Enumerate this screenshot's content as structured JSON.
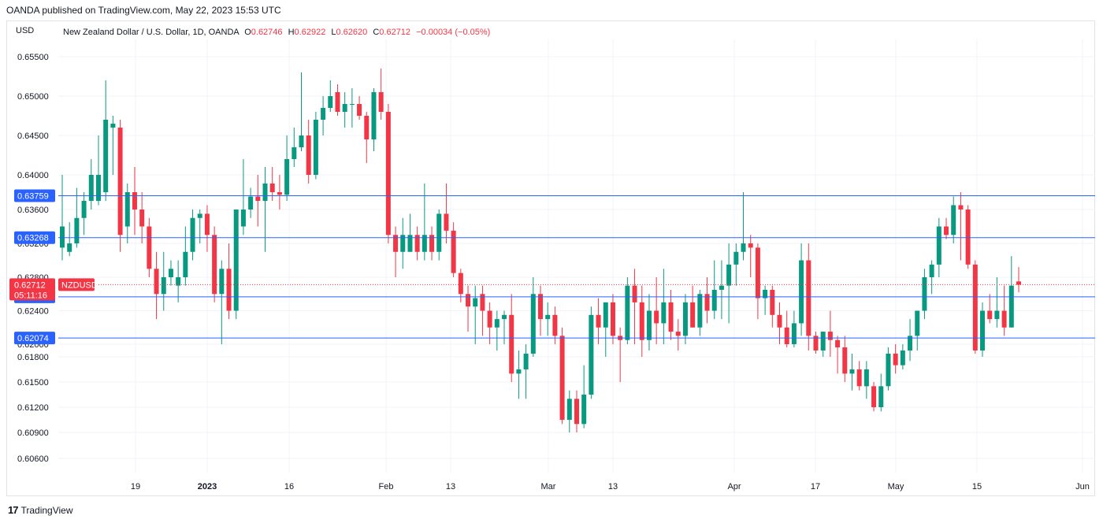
{
  "header": {
    "published": "OANDA published on TradingView.com, May 22, 2023 15:53 UTC"
  },
  "axis_currency": "USD",
  "legend": {
    "symbol": "New Zealand Dollar / U.S. Dollar, 1D, OANDA",
    "o_label": "O",
    "o_value": "0.62746",
    "h_label": "H",
    "h_value": "0.62922",
    "l_label": "L",
    "l_value": "0.62620",
    "c_label": "C",
    "c_value": "0.62712",
    "change": "−0.00034 (−0.05%)"
  },
  "footer": {
    "brand": "TradingView"
  },
  "colors": {
    "up": "#089981",
    "down": "#f23645",
    "hline": "#2962ff",
    "label_bg": "#2962ff",
    "price_bg": "#f23645"
  },
  "chart_data": {
    "type": "candlestick",
    "series_name": "NZDUSD",
    "y_ticks": [
      "0.65500",
      "0.65000",
      "0.64500",
      "0.64000",
      "0.63600",
      "0.63200",
      "0.62800",
      "0.62400",
      "0.62000",
      "0.61800",
      "0.61500",
      "0.61200",
      "0.60900",
      "0.60600"
    ],
    "x_ticks": [
      "19",
      "2023",
      "16",
      "Feb",
      "13",
      "Mar",
      "13",
      "Apr",
      "17",
      "May",
      "15",
      "Jun"
    ],
    "horizontal_lines": [
      {
        "value": 0.63759,
        "label": "0.63759"
      },
      {
        "value": 0.63268,
        "label": "0.63268"
      },
      {
        "value": 0.62566,
        "label": "0.62566"
      },
      {
        "value": 0.62074,
        "label": "0.62074"
      }
    ],
    "last_price": {
      "value": 0.62712,
      "label": "0.62712",
      "symbol": "NZDUSD",
      "countdown": "05:11:16"
    },
    "candles": [
      [
        0.6315,
        0.64,
        0.63,
        0.634
      ],
      [
        0.631,
        0.6345,
        0.6305,
        0.632
      ],
      [
        0.632,
        0.6385,
        0.6315,
        0.635
      ],
      [
        0.635,
        0.638,
        0.633,
        0.637
      ],
      [
        0.637,
        0.642,
        0.636,
        0.64
      ],
      [
        0.637,
        0.645,
        0.6365,
        0.64
      ],
      [
        0.638,
        0.652,
        0.637,
        0.647
      ],
      [
        0.646,
        0.6475,
        0.64,
        0.6465
      ],
      [
        0.646,
        0.647,
        0.631,
        0.633
      ],
      [
        0.634,
        0.639,
        0.632,
        0.638
      ],
      [
        0.638,
        0.641,
        0.633,
        0.636
      ],
      [
        0.636,
        0.638,
        0.632,
        0.634
      ],
      [
        0.634,
        0.635,
        0.628,
        0.629
      ],
      [
        0.629,
        0.631,
        0.623,
        0.626
      ],
      [
        0.626,
        0.631,
        0.624,
        0.628
      ],
      [
        0.628,
        0.63,
        0.627,
        0.629
      ],
      [
        0.627,
        0.63,
        0.625,
        0.628
      ],
      [
        0.628,
        0.634,
        0.627,
        0.631
      ],
      [
        0.631,
        0.636,
        0.63,
        0.635
      ],
      [
        0.635,
        0.636,
        0.632,
        0.6355
      ],
      [
        0.6355,
        0.6365,
        0.631,
        0.633
      ],
      [
        0.633,
        0.634,
        0.625,
        0.626
      ],
      [
        0.626,
        0.63,
        0.62,
        0.629
      ],
      [
        0.629,
        0.632,
        0.623,
        0.624
      ],
      [
        0.624,
        0.636,
        0.623,
        0.636
      ],
      [
        0.634,
        0.642,
        0.633,
        0.636
      ],
      [
        0.636,
        0.6385,
        0.635,
        0.6375
      ],
      [
        0.6375,
        0.64,
        0.634,
        0.637
      ],
      [
        0.637,
        0.641,
        0.631,
        0.639
      ],
      [
        0.639,
        0.641,
        0.637,
        0.638
      ],
      [
        0.638,
        0.64,
        0.636,
        0.6377
      ],
      [
        0.6377,
        0.645,
        0.637,
        0.642
      ],
      [
        0.642,
        0.646,
        0.641,
        0.6435
      ],
      [
        0.6435,
        0.653,
        0.643,
        0.645
      ],
      [
        0.645,
        0.647,
        0.639,
        0.64
      ],
      [
        0.64,
        0.648,
        0.6395,
        0.647
      ],
      [
        0.647,
        0.65,
        0.645,
        0.6485
      ],
      [
        0.6485,
        0.652,
        0.648,
        0.65
      ],
      [
        0.6505,
        0.6515,
        0.6475,
        0.648
      ],
      [
        0.648,
        0.6505,
        0.646,
        0.649
      ],
      [
        0.649,
        0.651,
        0.646,
        0.649
      ],
      [
        0.649,
        0.65,
        0.647,
        0.6475
      ],
      [
        0.6475,
        0.648,
        0.6415,
        0.6445
      ],
      [
        0.6445,
        0.651,
        0.643,
        0.6505
      ],
      [
        0.6505,
        0.6535,
        0.647,
        0.648
      ],
      [
        0.648,
        0.649,
        0.632,
        0.633
      ],
      [
        0.633,
        0.634,
        0.628,
        0.631
      ],
      [
        0.631,
        0.635,
        0.629,
        0.633
      ],
      [
        0.631,
        0.6355,
        0.631,
        0.633
      ],
      [
        0.633,
        0.634,
        0.63,
        0.631
      ],
      [
        0.631,
        0.639,
        0.63,
        0.633
      ],
      [
        0.633,
        0.634,
        0.63,
        0.631
      ],
      [
        0.631,
        0.636,
        0.63,
        0.6355
      ],
      [
        0.6355,
        0.639,
        0.632,
        0.6335
      ],
      [
        0.6335,
        0.6345,
        0.628,
        0.6285
      ],
      [
        0.6285,
        0.629,
        0.625,
        0.626
      ],
      [
        0.626,
        0.627,
        0.6215,
        0.6245
      ],
      [
        0.6245,
        0.627,
        0.62,
        0.6255
      ],
      [
        0.626,
        0.627,
        0.621,
        0.624
      ],
      [
        0.624,
        0.625,
        0.62,
        0.622
      ],
      [
        0.622,
        0.624,
        0.619,
        0.623
      ],
      [
        0.623,
        0.624,
        0.62,
        0.6235
      ],
      [
        0.6235,
        0.626,
        0.615,
        0.616
      ],
      [
        0.616,
        0.619,
        0.613,
        0.6165
      ],
      [
        0.6165,
        0.62,
        0.613,
        0.6185
      ],
      [
        0.6185,
        0.628,
        0.618,
        0.626
      ],
      [
        0.626,
        0.627,
        0.621,
        0.623
      ],
      [
        0.623,
        0.625,
        0.621,
        0.6235
      ],
      [
        0.6235,
        0.6245,
        0.62,
        0.621
      ],
      [
        0.621,
        0.622,
        0.61,
        0.6105
      ],
      [
        0.6105,
        0.614,
        0.609,
        0.613
      ],
      [
        0.613,
        0.614,
        0.609,
        0.61
      ],
      [
        0.61,
        0.617,
        0.6095,
        0.6135
      ],
      [
        0.6135,
        0.6245,
        0.613,
        0.6235
      ],
      [
        0.6235,
        0.6255,
        0.62,
        0.622
      ],
      [
        0.622,
        0.625,
        0.618,
        0.625
      ],
      [
        0.625,
        0.626,
        0.62,
        0.621
      ],
      [
        0.621,
        0.622,
        0.615,
        0.6205
      ],
      [
        0.6205,
        0.628,
        0.62,
        0.627
      ],
      [
        0.627,
        0.629,
        0.62,
        0.625
      ],
      [
        0.625,
        0.627,
        0.618,
        0.6205
      ],
      [
        0.6205,
        0.626,
        0.619,
        0.624
      ],
      [
        0.624,
        0.628,
        0.62,
        0.6225
      ],
      [
        0.6225,
        0.629,
        0.62,
        0.625
      ],
      [
        0.625,
        0.6265,
        0.6205,
        0.6215
      ],
      [
        0.6215,
        0.623,
        0.619,
        0.621
      ],
      [
        0.621,
        0.626,
        0.62,
        0.625
      ],
      [
        0.625,
        0.627,
        0.622,
        0.622
      ],
      [
        0.622,
        0.6265,
        0.621,
        0.626
      ],
      [
        0.626,
        0.628,
        0.6225,
        0.624
      ],
      [
        0.624,
        0.63,
        0.623,
        0.6265
      ],
      [
        0.6265,
        0.63,
        0.623,
        0.627
      ],
      [
        0.627,
        0.632,
        0.6225,
        0.6295
      ],
      [
        0.6295,
        0.632,
        0.627,
        0.631
      ],
      [
        0.631,
        0.638,
        0.63,
        0.632
      ],
      [
        0.632,
        0.633,
        0.628,
        0.6315
      ],
      [
        0.6315,
        0.632,
        0.623,
        0.6255
      ],
      [
        0.6255,
        0.627,
        0.6235,
        0.6265
      ],
      [
        0.6265,
        0.627,
        0.622,
        0.6235
      ],
      [
        0.6235,
        0.625,
        0.62,
        0.622
      ],
      [
        0.622,
        0.624,
        0.6195,
        0.62
      ],
      [
        0.62,
        0.624,
        0.6195,
        0.6225
      ],
      [
        0.6225,
        0.632,
        0.621,
        0.63
      ],
      [
        0.63,
        0.632,
        0.619,
        0.621
      ],
      [
        0.621,
        0.6215,
        0.6185,
        0.619
      ],
      [
        0.619,
        0.6215,
        0.618,
        0.6215
      ],
      [
        0.6215,
        0.624,
        0.618,
        0.6205
      ],
      [
        0.6205,
        0.621,
        0.616,
        0.6195
      ],
      [
        0.6195,
        0.621,
        0.615,
        0.616
      ],
      [
        0.616,
        0.6185,
        0.614,
        0.6165
      ],
      [
        0.6165,
        0.6175,
        0.614,
        0.6145
      ],
      [
        0.6145,
        0.6175,
        0.613,
        0.6165
      ],
      [
        0.6145,
        0.615,
        0.6115,
        0.612
      ],
      [
        0.612,
        0.616,
        0.6115,
        0.6145
      ],
      [
        0.6145,
        0.6195,
        0.614,
        0.6185
      ],
      [
        0.6185,
        0.62,
        0.616,
        0.617
      ],
      [
        0.617,
        0.62,
        0.6165,
        0.619
      ],
      [
        0.619,
        0.623,
        0.6175,
        0.621
      ],
      [
        0.621,
        0.624,
        0.619,
        0.624
      ],
      [
        0.624,
        0.629,
        0.623,
        0.628
      ],
      [
        0.628,
        0.63,
        0.626,
        0.6295
      ],
      [
        0.6295,
        0.635,
        0.628,
        0.634
      ],
      [
        0.634,
        0.635,
        0.6325,
        0.633
      ],
      [
        0.633,
        0.6375,
        0.632,
        0.6365
      ],
      [
        0.6365,
        0.638,
        0.63,
        0.636
      ],
      [
        0.636,
        0.6365,
        0.629,
        0.6295
      ],
      [
        0.6295,
        0.63,
        0.6185,
        0.619
      ],
      [
        0.619,
        0.625,
        0.618,
        0.624
      ],
      [
        0.624,
        0.626,
        0.6225,
        0.623
      ],
      [
        0.623,
        0.628,
        0.622,
        0.624
      ],
      [
        0.624,
        0.627,
        0.621,
        0.622
      ],
      [
        0.622,
        0.6305,
        0.622,
        0.627
      ],
      [
        0.6275,
        0.6292,
        0.6262,
        0.6271
      ]
    ]
  }
}
